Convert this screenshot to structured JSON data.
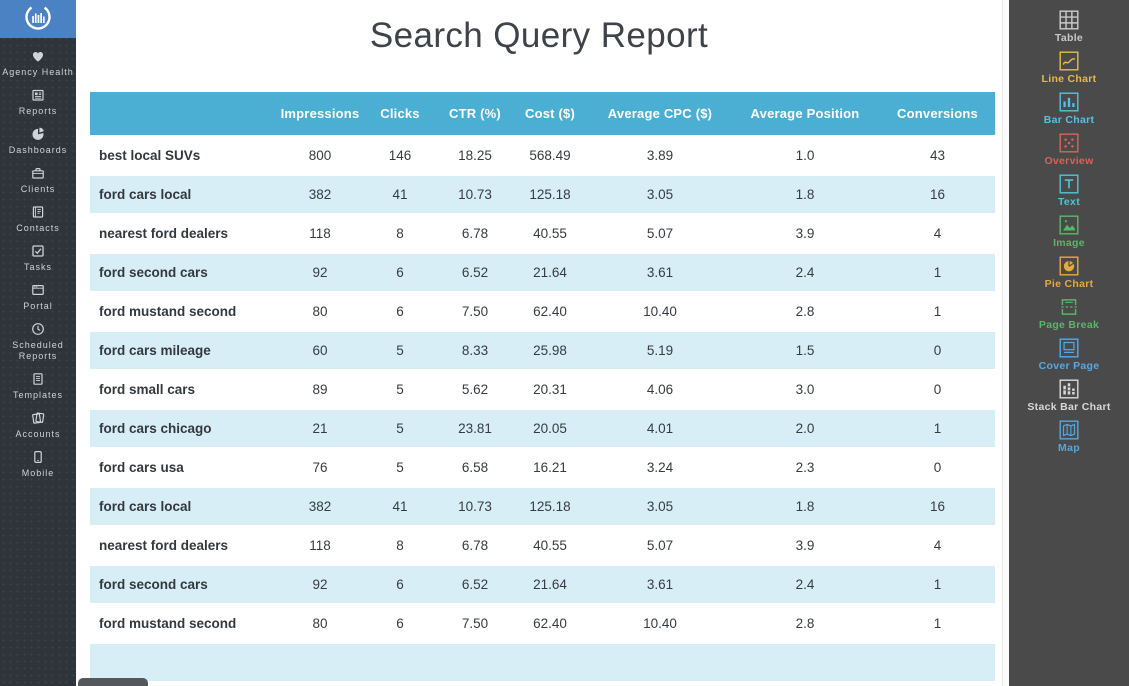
{
  "sidebar": {
    "logo": "bar-chart-circle-logo",
    "items": [
      {
        "label": "Agency Health",
        "icon": "heart-icon"
      },
      {
        "label": "Reports",
        "icon": "report-icon"
      },
      {
        "label": "Dashboards",
        "icon": "pie-icon"
      },
      {
        "label": "Clients",
        "icon": "briefcase-icon"
      },
      {
        "label": "Contacts",
        "icon": "contact-card-icon"
      },
      {
        "label": "Tasks",
        "icon": "checkbox-icon"
      },
      {
        "label": "Portal",
        "icon": "browser-icon"
      },
      {
        "label": "Scheduled Reports",
        "icon": "clock-icon"
      },
      {
        "label": "Templates",
        "icon": "document-icon"
      },
      {
        "label": "Accounts",
        "icon": "pages-icon"
      },
      {
        "label": "Mobile",
        "icon": "phone-icon"
      }
    ]
  },
  "report": {
    "title": "Search Query Report",
    "colors": {
      "header_bg": "#4bafd3",
      "row_alt_bg": "#d7eef7"
    },
    "table": {
      "columns": [
        "",
        "Impressions",
        "Clicks",
        "CTR (%)",
        "Cost ($)",
        "Average CPC ($)",
        "Average Position",
        "Conversions"
      ],
      "rows": [
        [
          "best local SUVs",
          "800",
          "146",
          "18.25",
          "568.49",
          "3.89",
          "1.0",
          "43"
        ],
        [
          "ford cars local",
          "382",
          "41",
          "10.73",
          "125.18",
          "3.05",
          "1.8",
          "16"
        ],
        [
          "nearest ford dealers",
          "118",
          "8",
          "6.78",
          "40.55",
          "5.07",
          "3.9",
          "4"
        ],
        [
          "ford second cars",
          "92",
          "6",
          "6.52",
          "21.64",
          "3.61",
          "2.4",
          "1"
        ],
        [
          "ford mustand second",
          "80",
          "6",
          "7.50",
          "62.40",
          "10.40",
          "2.8",
          "1"
        ],
        [
          "ford cars mileage",
          "60",
          "5",
          "8.33",
          "25.98",
          "5.19",
          "1.5",
          "0"
        ],
        [
          "ford small cars",
          "89",
          "5",
          "5.62",
          "20.31",
          "4.06",
          "3.0",
          "0"
        ],
        [
          "ford cars chicago",
          "21",
          "5",
          "23.81",
          "20.05",
          "4.01",
          "2.0",
          "1"
        ],
        [
          "ford cars usa",
          "76",
          "5",
          "6.58",
          "16.21",
          "3.24",
          "2.3",
          "0"
        ],
        [
          "ford cars local",
          "382",
          "41",
          "10.73",
          "125.18",
          "3.05",
          "1.8",
          "16"
        ],
        [
          "nearest ford dealers",
          "118",
          "8",
          "6.78",
          "40.55",
          "5.07",
          "3.9",
          "4"
        ],
        [
          "ford second cars",
          "92",
          "6",
          "6.52",
          "21.64",
          "3.61",
          "2.4",
          "1"
        ],
        [
          "ford mustand second",
          "80",
          "6",
          "7.50",
          "62.40",
          "10.40",
          "2.8",
          "1"
        ]
      ]
    }
  },
  "widget_panel": {
    "items": [
      {
        "label": "Table",
        "icon": "table-icon",
        "color": "#c9c9c9"
      },
      {
        "label": "Line Chart",
        "icon": "line-chart-icon",
        "color": "#e3bb4a"
      },
      {
        "label": "Bar Chart",
        "icon": "bar-chart-icon",
        "color": "#54c0e8"
      },
      {
        "label": "Overview",
        "icon": "overview-icon",
        "color": "#d96257"
      },
      {
        "label": "Text",
        "icon": "text-icon",
        "color": "#4cc5d6"
      },
      {
        "label": "Image",
        "icon": "image-icon",
        "color": "#58b768"
      },
      {
        "label": "Pie Chart",
        "icon": "pie-chart-icon",
        "color": "#e5a93d"
      },
      {
        "label": "Page Break",
        "icon": "page-break-icon",
        "color": "#58b768"
      },
      {
        "label": "Cover Page",
        "icon": "cover-page-icon",
        "color": "#54a9e8"
      },
      {
        "label": "Stack Bar Chart",
        "icon": "stack-bar-chart-icon",
        "color": "#d8d8d8"
      },
      {
        "label": "Map",
        "icon": "map-icon",
        "color": "#53a7e0"
      }
    ]
  }
}
